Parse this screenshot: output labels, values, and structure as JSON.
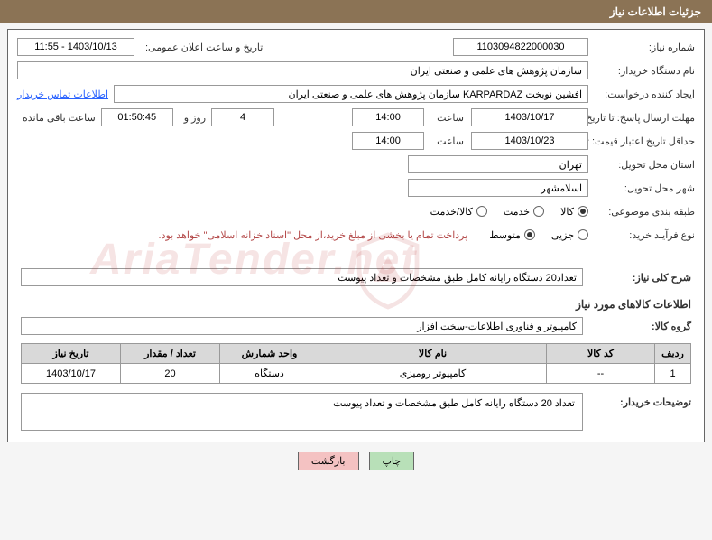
{
  "header_title": "جزئیات اطلاعات نیاز",
  "labels": {
    "need_number": "شماره نیاز:",
    "announce_date": "تاریخ و ساعت اعلان عمومی:",
    "buyer_org": "نام دستگاه خریدار:",
    "requester": "ایجاد کننده درخواست:",
    "buyer_contact": "اطلاعات تماس خریدار",
    "response_deadline": "مهلت ارسال پاسخ: تا تاریخ:",
    "time1": "ساعت",
    "days_and": "روز و",
    "time_left": "ساعت باقی مانده",
    "price_validity": "حداقل تاریخ اعتبار قیمت: تا تاریخ:",
    "delivery_province": "استان محل تحویل:",
    "delivery_city": "شهر محل تحویل:",
    "category": "طبقه بندی موضوعی:",
    "purchase_process": "نوع فرآیند خرید:",
    "general_desc": "شرح کلی نیاز:",
    "goods_info": "اطلاعات کالاهای مورد نیاز",
    "goods_group": "گروه کالا:",
    "buyer_notes": "توضیحات خریدار:"
  },
  "values": {
    "need_number": "1103094822000030",
    "announce_date": "1403/10/13 - 11:55",
    "buyer_org": "سازمان پژوهش های علمی و صنعتی ایران",
    "requester": "افشین نوبخت KARPARDAZ سازمان پژوهش های علمی و صنعتی ایران",
    "response_date": "1403/10/17",
    "response_time": "14:00",
    "days_left": "4",
    "countdown": "01:50:45",
    "validity_date": "1403/10/23",
    "validity_time": "14:00",
    "province": "تهران",
    "city": "اسلامشهر",
    "payment_note": "پرداخت تمام یا بخشی از مبلغ خرید،از محل \"اسناد خزانه اسلامی\" خواهد بود.",
    "description": "تعداد20 دستگاه رایانه کامل طبق مشخصات و تعداد پیوست",
    "goods_group": "کامپیوتر و فناوری اطلاعات-سخت افزار",
    "buyer_notes": "تعداد 20 دستگاه رایانه کامل طبق مشخصات و تعداد پیوست"
  },
  "radios": {
    "category": {
      "options": [
        "کالا",
        "خدمت",
        "کالا/خدمت"
      ],
      "selected": 0
    },
    "process": {
      "options": [
        "جزیی",
        "متوسط"
      ],
      "selected": 1
    }
  },
  "table": {
    "headers": [
      "ردیف",
      "کد کالا",
      "نام کالا",
      "واحد شمارش",
      "تعداد / مقدار",
      "تاریخ نیاز"
    ],
    "rows": [
      [
        "1",
        "--",
        "کامپیوتر رومیزی",
        "دستگاه",
        "20",
        "1403/10/17"
      ]
    ]
  },
  "buttons": {
    "print": "چاپ",
    "back": "بازگشت"
  },
  "watermark": "AriaTender.net"
}
